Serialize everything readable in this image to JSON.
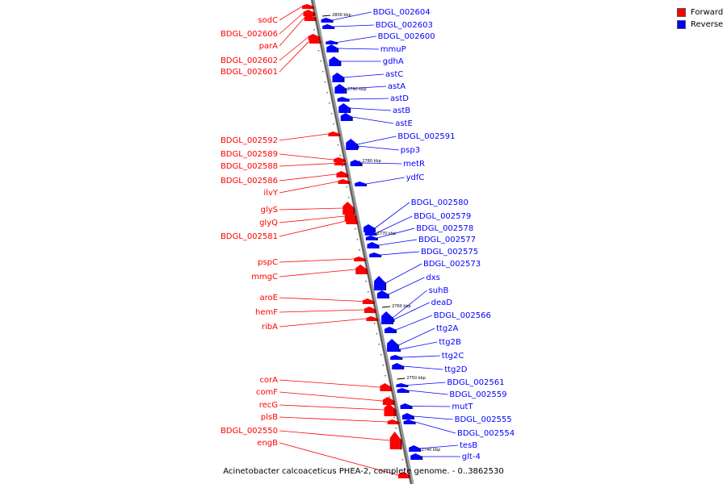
{
  "legend": {
    "forward_label": "Forward",
    "reverse_label": "Reverse",
    "forward_color": "#ff0000",
    "reverse_color": "#0000ff"
  },
  "caption": "Acinetobacter calcoaceticus PHEA-2, complete genome. - 0..3862530",
  "ticks": [
    "2800 kbp",
    "2790 kbp",
    "2780 kbp",
    "2770 kbp",
    "2760 kbp",
    "2750 kbp",
    "2740 kbp"
  ],
  "forward_genes": [
    "sodC",
    "BDGL_002606",
    "parA",
    "BDGL_002602",
    "BDGL_002601",
    "BDGL_002592",
    "BDGL_002589",
    "BDGL_002588",
    "BDGL_002586",
    "ilvY",
    "glyS",
    "glyQ",
    "BDGL_002581",
    "pspC",
    "mmgC",
    "aroE",
    "hemF",
    "ribA",
    "corA",
    "comF",
    "recG",
    "plsB",
    "BDGL_002550",
    "engB"
  ],
  "reverse_genes": [
    "BDGL_002604",
    "BDGL_002603",
    "BDGL_002600",
    "mmuP",
    "gdhA",
    "astC",
    "astA",
    "astD",
    "astB",
    "astE",
    "BDGL_002591",
    "psp3",
    "metR",
    "ydfC",
    "BDGL_002580",
    "BDGL_002579",
    "BDGL_002578",
    "BDGL_002577",
    "BDGL_002575",
    "BDGL_002573",
    "dxs",
    "suhB",
    "deaD",
    "BDGL_002566",
    "ttg2A",
    "ttg2B",
    "ttg2C",
    "ttg2D",
    "BDGL_002561",
    "BDGL_002559",
    "mutT",
    "BDGL_002555",
    "BDGL_002554",
    "tesB",
    "glt-4"
  ]
}
